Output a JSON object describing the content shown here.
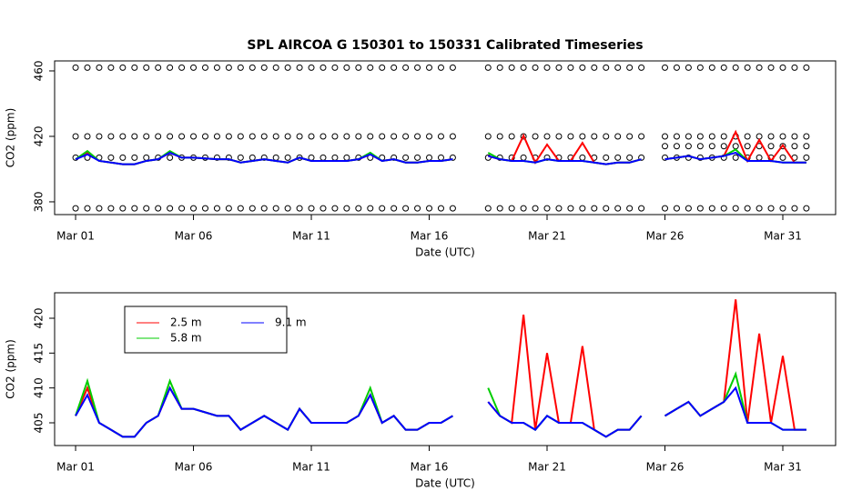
{
  "chart_data": [
    {
      "type": "scatter",
      "title": "SPL   AIRCOA  G    150301  to  150331   Calibrated Timeseries",
      "xlabel": "Date (UTC)",
      "ylabel": "CO2 (ppm)",
      "xlim": [
        0.11,
        33.24
      ],
      "ylim": [
        372.2,
        466.1
      ],
      "xticks": [
        {
          "value": 1,
          "label": "Mar 01"
        },
        {
          "value": 6,
          "label": "Mar 06"
        },
        {
          "value": 11,
          "label": "Mar 11"
        },
        {
          "value": 16,
          "label": "Mar 16"
        },
        {
          "value": 21,
          "label": "Mar 21"
        },
        {
          "value": 26,
          "label": "Mar 26"
        },
        {
          "value": 31,
          "label": "Mar 31"
        }
      ],
      "yticks": [
        380,
        420,
        460
      ],
      "x": [
        1,
        1.5,
        2,
        2.5,
        3,
        3.5,
        4,
        4.5,
        5,
        5.5,
        6,
        6.5,
        7,
        7.5,
        8,
        8.5,
        9,
        9.5,
        10,
        10.5,
        11,
        11.5,
        12,
        12.5,
        13,
        13.5,
        14,
        14.5,
        15,
        15.5,
        16,
        16.5,
        17,
        17.5,
        18,
        18.5,
        19,
        19.5,
        20,
        20.5,
        21,
        21.5,
        22,
        22.5,
        23,
        23.5,
        24,
        24.5,
        25,
        25.5,
        26,
        26.5,
        27,
        27.5,
        28,
        28.5,
        29,
        29.5,
        30,
        30.5,
        31,
        31.5,
        32
      ],
      "series": [
        {
          "color": "#000000",
          "marker": "circle",
          "values": [
            376,
            376,
            376,
            376,
            376,
            376,
            376,
            376,
            376,
            376,
            376,
            376,
            376,
            376,
            376,
            376,
            376,
            376,
            376,
            376,
            376,
            376,
            376,
            376,
            376,
            376,
            376,
            376,
            376,
            376,
            376,
            376,
            376,
            null,
            null,
            376,
            376,
            376,
            376,
            376,
            376,
            376,
            376,
            376,
            376,
            376,
            376,
            376,
            376,
            null,
            376,
            376,
            376,
            376,
            376,
            376,
            376,
            376,
            376,
            376,
            376,
            376,
            376
          ]
        },
        {
          "color": "#000000",
          "marker": "circle",
          "values": [
            407,
            407,
            407,
            407,
            407,
            407,
            407,
            407,
            407,
            407,
            407,
            407,
            407,
            407,
            407,
            407,
            407,
            407,
            407,
            407,
            407,
            407,
            407,
            407,
            407,
            407,
            407,
            407,
            407,
            407,
            407,
            407,
            407,
            null,
            null,
            407,
            407,
            407,
            407,
            407,
            407,
            407,
            407,
            407,
            407,
            407,
            407,
            407,
            407,
            null,
            407,
            407,
            407,
            407,
            407,
            407,
            407,
            407,
            407,
            407,
            407,
            407,
            407
          ]
        },
        {
          "color": "#000000",
          "marker": "circle",
          "values": [
            420,
            420,
            420,
            420,
            420,
            420,
            420,
            420,
            420,
            420,
            420,
            420,
            420,
            420,
            420,
            420,
            420,
            420,
            420,
            420,
            420,
            420,
            420,
            420,
            420,
            420,
            420,
            420,
            420,
            420,
            420,
            420,
            420,
            null,
            null,
            420,
            420,
            420,
            420,
            420,
            420,
            420,
            420,
            420,
            420,
            420,
            420,
            420,
            420,
            null,
            420,
            420,
            420,
            420,
            420,
            420,
            420,
            420,
            420,
            420,
            420,
            420,
            420
          ]
        },
        {
          "color": "#000000",
          "marker": "circle",
          "values": [
            null,
            null,
            null,
            null,
            null,
            null,
            null,
            null,
            null,
            null,
            null,
            null,
            null,
            null,
            null,
            null,
            null,
            null,
            null,
            null,
            null,
            null,
            null,
            null,
            null,
            null,
            null,
            null,
            null,
            null,
            null,
            null,
            null,
            null,
            null,
            null,
            null,
            null,
            null,
            null,
            null,
            null,
            null,
            null,
            null,
            null,
            null,
            null,
            null,
            null,
            414,
            414,
            414,
            414,
            414,
            414,
            414,
            414,
            414,
            414,
            414,
            414,
            414
          ]
        },
        {
          "color": "#000000",
          "marker": "circle",
          "values": [
            462,
            462,
            462,
            462,
            462,
            462,
            462,
            462,
            462,
            462,
            462,
            462,
            462,
            462,
            462,
            462,
            462,
            462,
            462,
            462,
            462,
            462,
            462,
            462,
            462,
            462,
            462,
            462,
            462,
            462,
            462,
            462,
            462,
            null,
            null,
            462,
            462,
            462,
            462,
            462,
            462,
            462,
            462,
            462,
            462,
            462,
            462,
            462,
            462,
            null,
            462,
            462,
            462,
            462,
            462,
            462,
            462,
            462,
            462,
            462,
            462,
            462,
            462
          ]
        },
        {
          "color": "#ff0000",
          "values": [
            406,
            410,
            405,
            404,
            403,
            403,
            405,
            406,
            410,
            407,
            407,
            406.5,
            406,
            406,
            404,
            405,
            406,
            405,
            404,
            407,
            405,
            405,
            405,
            405,
            406,
            409,
            405,
            406,
            404,
            404,
            405,
            405,
            406,
            null,
            null,
            408,
            406,
            405,
            420.5,
            404,
            415,
            405,
            405,
            416,
            404,
            403,
            404,
            404,
            406,
            null,
            406,
            407,
            408,
            406,
            407,
            408,
            422.7,
            405,
            417.8,
            405,
            414.6,
            404,
            404
          ]
        },
        {
          "color": "#00cd00",
          "values": [
            406,
            411,
            405,
            404,
            403,
            403,
            405,
            406,
            411,
            407,
            407,
            406.5,
            406,
            406,
            404,
            405,
            406,
            405,
            404,
            407,
            405,
            405,
            405,
            405,
            406,
            410,
            405,
            406,
            404,
            404,
            405,
            405,
            406,
            null,
            null,
            410,
            406,
            405,
            405,
            404,
            406,
            405,
            405,
            405,
            404,
            403,
            404,
            404,
            406,
            null,
            406,
            407,
            408,
            406,
            407,
            408,
            412,
            405,
            405,
            405,
            404,
            404,
            404
          ]
        },
        {
          "color": "#0000ff",
          "values": [
            406,
            409,
            405,
            404,
            403,
            403,
            405,
            406,
            410,
            407,
            407,
            406.5,
            406,
            406,
            404,
            405,
            406,
            405,
            404,
            407,
            405,
            405,
            405,
            405,
            406,
            409,
            405,
            406,
            404,
            404,
            405,
            405,
            406,
            null,
            null,
            408,
            406,
            405,
            405,
            404,
            406,
            405,
            405,
            405,
            404,
            403,
            404,
            404,
            406,
            null,
            406,
            407,
            408,
            406,
            407,
            408,
            410,
            405,
            405,
            405,
            404,
            404,
            404
          ]
        }
      ]
    },
    {
      "type": "line",
      "xlabel": "Date (UTC)",
      "ylabel": "CO2 (ppm)",
      "xlim": [
        0.11,
        33.24
      ],
      "ylim": [
        401.74,
        423.65
      ],
      "xticks": [
        {
          "value": 1,
          "label": "Mar 01"
        },
        {
          "value": 6,
          "label": "Mar 06"
        },
        {
          "value": 11,
          "label": "Mar 11"
        },
        {
          "value": 16,
          "label": "Mar 16"
        },
        {
          "value": 21,
          "label": "Mar 21"
        },
        {
          "value": 26,
          "label": "Mar 26"
        },
        {
          "value": 31,
          "label": "Mar 31"
        }
      ],
      "yticks": [
        405,
        410,
        415,
        420
      ],
      "legend": "top-left",
      "x": [
        1,
        1.5,
        2,
        2.5,
        3,
        3.5,
        4,
        4.5,
        5,
        5.5,
        6,
        6.5,
        7,
        7.5,
        8,
        8.5,
        9,
        9.5,
        10,
        10.5,
        11,
        11.5,
        12,
        12.5,
        13,
        13.5,
        14,
        14.5,
        15,
        15.5,
        16,
        16.5,
        17,
        17.5,
        18,
        18.5,
        19,
        19.5,
        20,
        20.5,
        21,
        21.5,
        22,
        22.5,
        23,
        23.5,
        24,
        24.5,
        25,
        25.5,
        26,
        26.5,
        27,
        27.5,
        28,
        28.5,
        29,
        29.5,
        30,
        30.5,
        31,
        31.5,
        32
      ],
      "series": [
        {
          "name": "2.5 m",
          "color": "#ff0000",
          "values": [
            406,
            410,
            405,
            404,
            403,
            403,
            405,
            406,
            410,
            407,
            407,
            406.5,
            406,
            406,
            404,
            405,
            406,
            405,
            404,
            407,
            405,
            405,
            405,
            405,
            406,
            409,
            405,
            406,
            404,
            404,
            405,
            405,
            406,
            null,
            null,
            408,
            406,
            405,
            420.5,
            404,
            415,
            405,
            405,
            416,
            404,
            403,
            404,
            404,
            406,
            null,
            406,
            407,
            408,
            406,
            407,
            408,
            422.7,
            405,
            417.8,
            405,
            414.6,
            404,
            404
          ]
        },
        {
          "name": "5.8 m",
          "color": "#00cd00",
          "values": [
            406,
            411,
            405,
            404,
            403,
            403,
            405,
            406,
            411,
            407,
            407,
            406.5,
            406,
            406,
            404,
            405,
            406,
            405,
            404,
            407,
            405,
            405,
            405,
            405,
            406,
            410,
            405,
            406,
            404,
            404,
            405,
            405,
            406,
            null,
            null,
            410,
            406,
            405,
            405,
            404,
            406,
            405,
            405,
            405,
            404,
            403,
            404,
            404,
            406,
            null,
            406,
            407,
            408,
            406,
            407,
            408,
            412,
            405,
            405,
            405,
            404,
            404,
            404
          ]
        },
        {
          "name": "9.1 m",
          "color": "#0000ff",
          "values": [
            406,
            409,
            405,
            404,
            403,
            403,
            405,
            406,
            410,
            407,
            407,
            406.5,
            406,
            406,
            404,
            405,
            406,
            405,
            404,
            407,
            405,
            405,
            405,
            405,
            406,
            409,
            405,
            406,
            404,
            404,
            405,
            405,
            406,
            null,
            null,
            408,
            406,
            405,
            405,
            404,
            406,
            405,
            405,
            405,
            404,
            403,
            404,
            404,
            406,
            null,
            406,
            407,
            408,
            406,
            407,
            408,
            410,
            405,
            405,
            405,
            404,
            404,
            404
          ]
        }
      ]
    }
  ]
}
